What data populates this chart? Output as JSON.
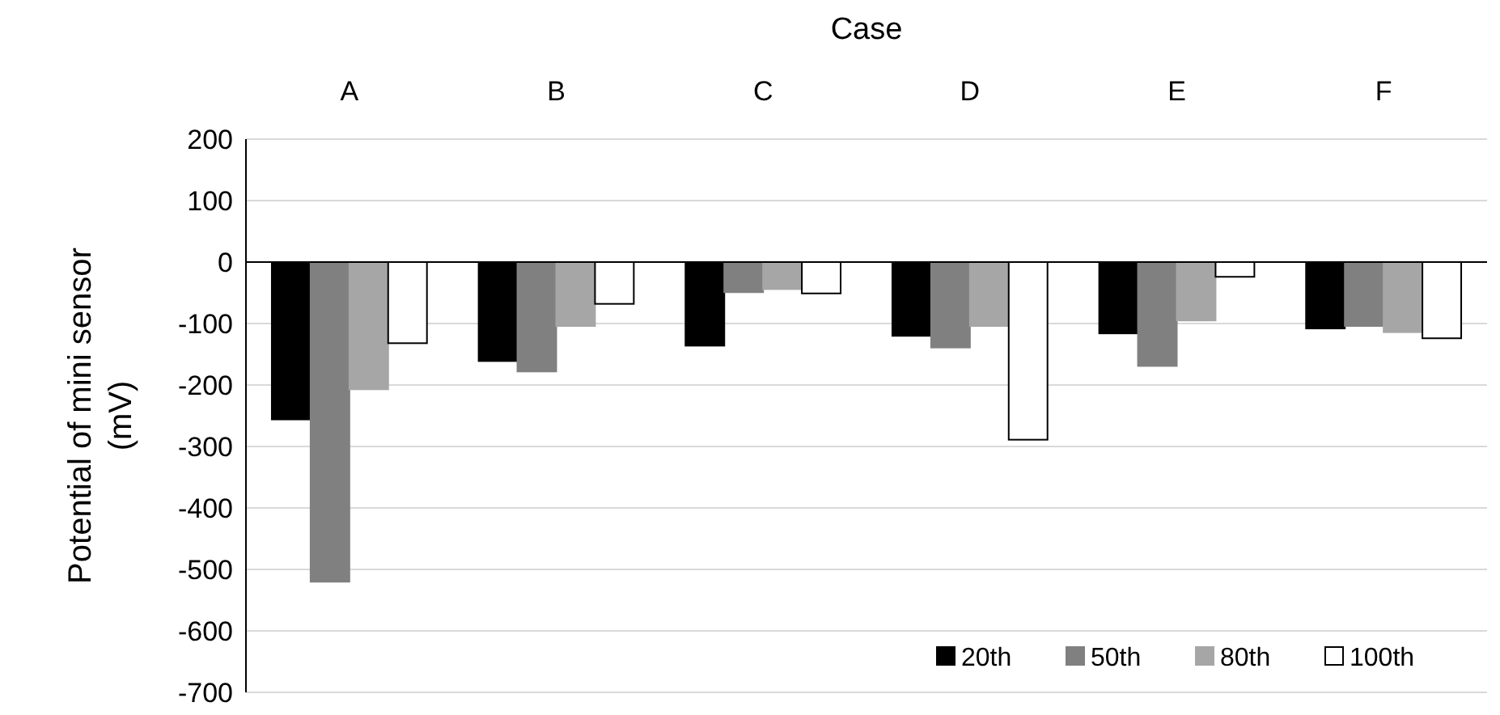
{
  "chart_data": {
    "type": "bar",
    "xlabel": "Case",
    "ylabel": "Potential of mini sensor (mV)",
    "categories": [
      "A",
      "B",
      "C",
      "D",
      "E",
      "F"
    ],
    "series": [
      {
        "name": "20th",
        "color": "#000000",
        "values": [
          -256,
          -161,
          -136,
          -120,
          -116,
          -108
        ]
      },
      {
        "name": "50th",
        "color": "#808080",
        "values": [
          -520,
          -178,
          -49,
          -139,
          -169,
          -104
        ]
      },
      {
        "name": "80th",
        "color": "#a6a6a6",
        "values": [
          -207,
          -104,
          -44,
          -104,
          -95,
          -114
        ]
      },
      {
        "name": "100th",
        "color": "#ffffff",
        "values": [
          -132,
          -68,
          -51,
          -289,
          -24,
          -124
        ]
      }
    ],
    "ylim": [
      -700,
      200
    ],
    "yticks": [
      -700,
      -600,
      -500,
      -400,
      -300,
      -200,
      -100,
      0,
      100,
      200
    ],
    "grid": "y",
    "legend": "bottom right"
  }
}
